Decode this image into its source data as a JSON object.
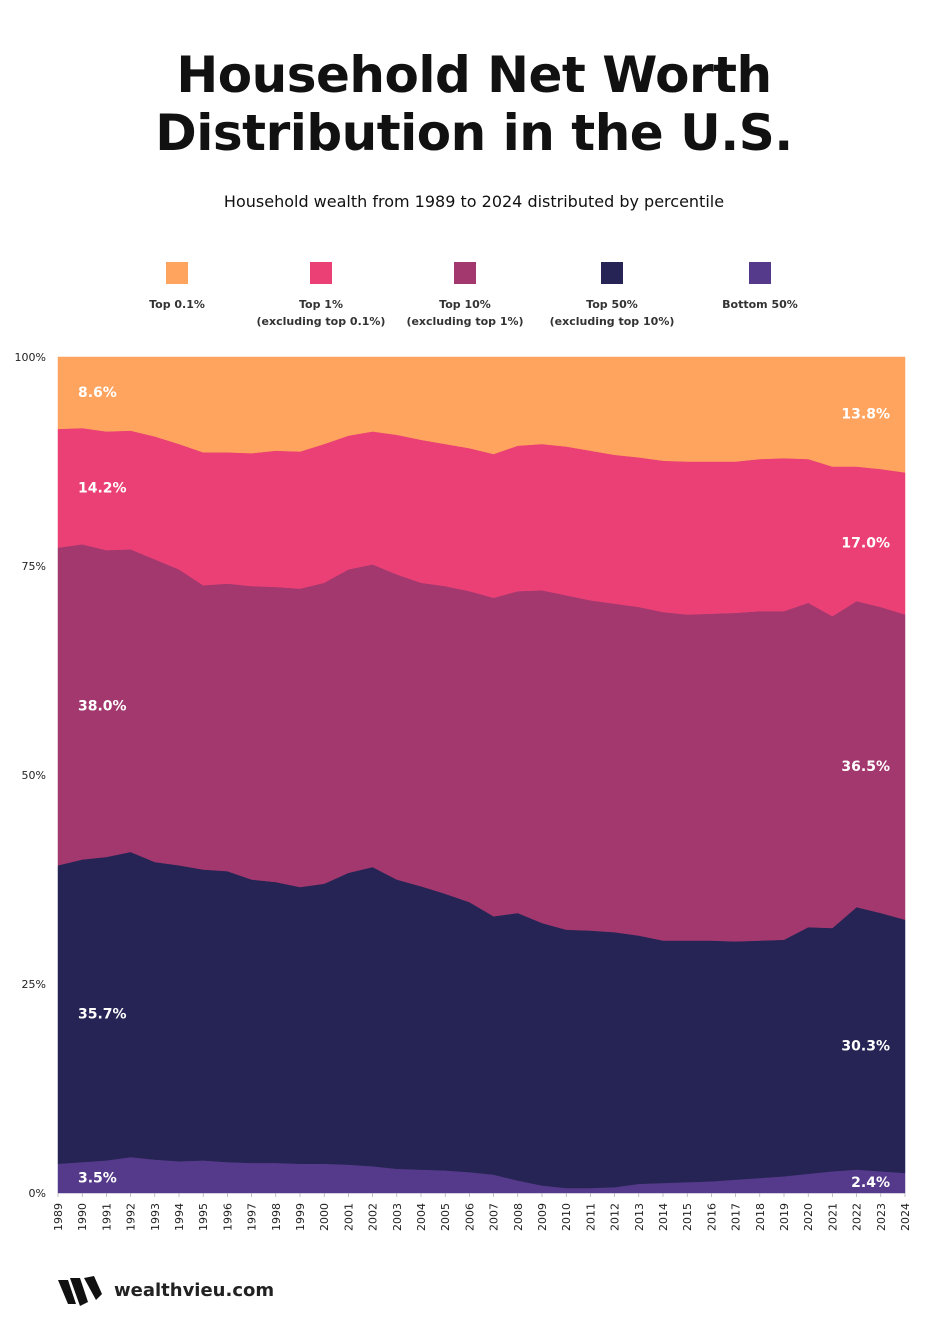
{
  "chart_data": {
    "type": "stacked-area",
    "title": "Household Net Worth Distribution in the U.S.",
    "subtitle": "Household wealth from 1989 to 2024 distributed by percentile",
    "x": [
      1989,
      1990,
      1991,
      1992,
      1993,
      1994,
      1995,
      1996,
      1997,
      1998,
      1999,
      2000,
      2001,
      2002,
      2003,
      2004,
      2005,
      2006,
      2007,
      2008,
      2009,
      2010,
      2011,
      2012,
      2013,
      2014,
      2015,
      2016,
      2017,
      2018,
      2019,
      2020,
      2021,
      2022,
      2023,
      2024
    ],
    "xlim": [
      1989,
      2024
    ],
    "xticks": [
      1989,
      1990,
      1991,
      1992,
      1993,
      1994,
      1995,
      1996,
      1997,
      1998,
      1999,
      2000,
      2001,
      2002,
      2003,
      2004,
      2005,
      2006,
      2007,
      2008,
      2009,
      2010,
      2011,
      2012,
      2013,
      2014,
      2015,
      2016,
      2017,
      2018,
      2019,
      2020,
      2021,
      2022,
      2023,
      2024
    ],
    "ylim": [
      0,
      100
    ],
    "yticks": [
      {
        "value": 100,
        "label": "100%"
      },
      {
        "value": 75,
        "label": "75%"
      },
      {
        "value": 50,
        "label": "50%"
      },
      {
        "value": 25,
        "label": "25%"
      },
      {
        "value": 0,
        "label": "0%"
      }
    ],
    "series": [
      {
        "name": "Top 0.1%",
        "color": "#FFA45E",
        "values": [
          8.6,
          8.5,
          8.9,
          8.8,
          9.5,
          10.4,
          11.4,
          11.4,
          11.5,
          11.2,
          11.3,
          10.4,
          9.4,
          8.9,
          9.3,
          9.9,
          10.4,
          10.9,
          11.6,
          10.6,
          10.4,
          10.7,
          11.2,
          11.7,
          12.0,
          12.4,
          12.5,
          12.5,
          12.5,
          12.2,
          12.1,
          12.2,
          13.1,
          13.1,
          13.4,
          13.8
        ],
        "value_labels": [
          "8.6%",
          null,
          null,
          null,
          null,
          null,
          null,
          null,
          null,
          null,
          null,
          null,
          null,
          null,
          null,
          null,
          null,
          null,
          null,
          null,
          null,
          null,
          null,
          null,
          null,
          null,
          null,
          null,
          null,
          null,
          null,
          null,
          null,
          null,
          null,
          "13.8%"
        ]
      },
      {
        "name": "Top 1%\n(excluding top 0.1%)",
        "color": "#EB4075",
        "values": [
          14.2,
          13.9,
          14.2,
          14.2,
          14.7,
          15.0,
          15.9,
          15.7,
          15.9,
          16.3,
          16.4,
          16.6,
          16.0,
          15.9,
          16.7,
          17.1,
          17.0,
          17.1,
          17.2,
          17.4,
          17.5,
          17.8,
          17.9,
          17.8,
          17.9,
          18.1,
          18.3,
          18.2,
          18.1,
          18.2,
          18.3,
          17.2,
          17.9,
          16.1,
          16.5,
          17.0
        ],
        "value_labels": [
          "14.2%",
          null,
          null,
          null,
          null,
          null,
          null,
          null,
          null,
          null,
          null,
          null,
          null,
          null,
          null,
          null,
          null,
          null,
          null,
          null,
          null,
          null,
          null,
          null,
          null,
          null,
          null,
          null,
          null,
          null,
          null,
          null,
          null,
          null,
          null,
          "17.0%"
        ]
      },
      {
        "name": "Top 10%\n(excluding top 1%)",
        "color": "#A2386E",
        "values": [
          38.0,
          37.7,
          36.7,
          36.2,
          36.2,
          35.4,
          34.0,
          34.4,
          35.1,
          35.3,
          35.7,
          36.0,
          36.3,
          36.2,
          36.5,
          36.3,
          36.8,
          37.2,
          38.1,
          38.5,
          39.8,
          40.0,
          39.5,
          39.3,
          39.3,
          39.3,
          39.0,
          39.1,
          39.3,
          39.4,
          39.3,
          38.8,
          37.3,
          36.6,
          36.6,
          36.5
        ],
        "value_labels": [
          "38.0%",
          null,
          null,
          null,
          null,
          null,
          null,
          null,
          null,
          null,
          null,
          null,
          null,
          null,
          null,
          null,
          null,
          null,
          null,
          null,
          null,
          null,
          null,
          null,
          null,
          null,
          null,
          null,
          null,
          null,
          null,
          null,
          null,
          null,
          null,
          "36.5%"
        ]
      },
      {
        "name": "Top 50%\n(excluding top 10%)",
        "color": "#262454",
        "values": [
          35.7,
          36.2,
          36.3,
          36.5,
          35.6,
          35.4,
          34.8,
          34.8,
          33.9,
          33.6,
          33.1,
          33.5,
          34.9,
          35.8,
          34.6,
          33.9,
          33.1,
          32.3,
          30.9,
          32.0,
          31.4,
          30.9,
          30.8,
          30.5,
          29.7,
          29.0,
          28.9,
          28.8,
          28.5,
          28.4,
          28.3,
          29.5,
          29.1,
          31.4,
          30.9,
          30.3
        ],
        "value_labels": [
          "35.7%",
          null,
          null,
          null,
          null,
          null,
          null,
          null,
          null,
          null,
          null,
          null,
          null,
          null,
          null,
          null,
          null,
          null,
          null,
          null,
          null,
          null,
          null,
          null,
          null,
          null,
          null,
          null,
          null,
          null,
          null,
          null,
          null,
          null,
          null,
          "30.3%"
        ]
      },
      {
        "name": "Bottom 50%",
        "color": "#553A8B",
        "values": [
          3.5,
          3.7,
          3.9,
          4.3,
          4.0,
          3.8,
          3.9,
          3.7,
          3.6,
          3.6,
          3.5,
          3.5,
          3.4,
          3.2,
          2.9,
          2.8,
          2.7,
          2.5,
          2.2,
          1.5,
          0.9,
          0.6,
          0.6,
          0.7,
          1.1,
          1.2,
          1.3,
          1.4,
          1.6,
          1.8,
          2.0,
          2.3,
          2.6,
          2.8,
          2.6,
          2.4
        ],
        "value_labels": [
          "3.5%",
          null,
          null,
          null,
          null,
          null,
          null,
          null,
          null,
          null,
          null,
          null,
          null,
          null,
          null,
          null,
          null,
          null,
          null,
          null,
          null,
          null,
          null,
          null,
          null,
          null,
          null,
          null,
          null,
          null,
          null,
          null,
          null,
          null,
          null,
          "2.4%"
        ]
      }
    ],
    "footer": "wealthvieu.com"
  }
}
